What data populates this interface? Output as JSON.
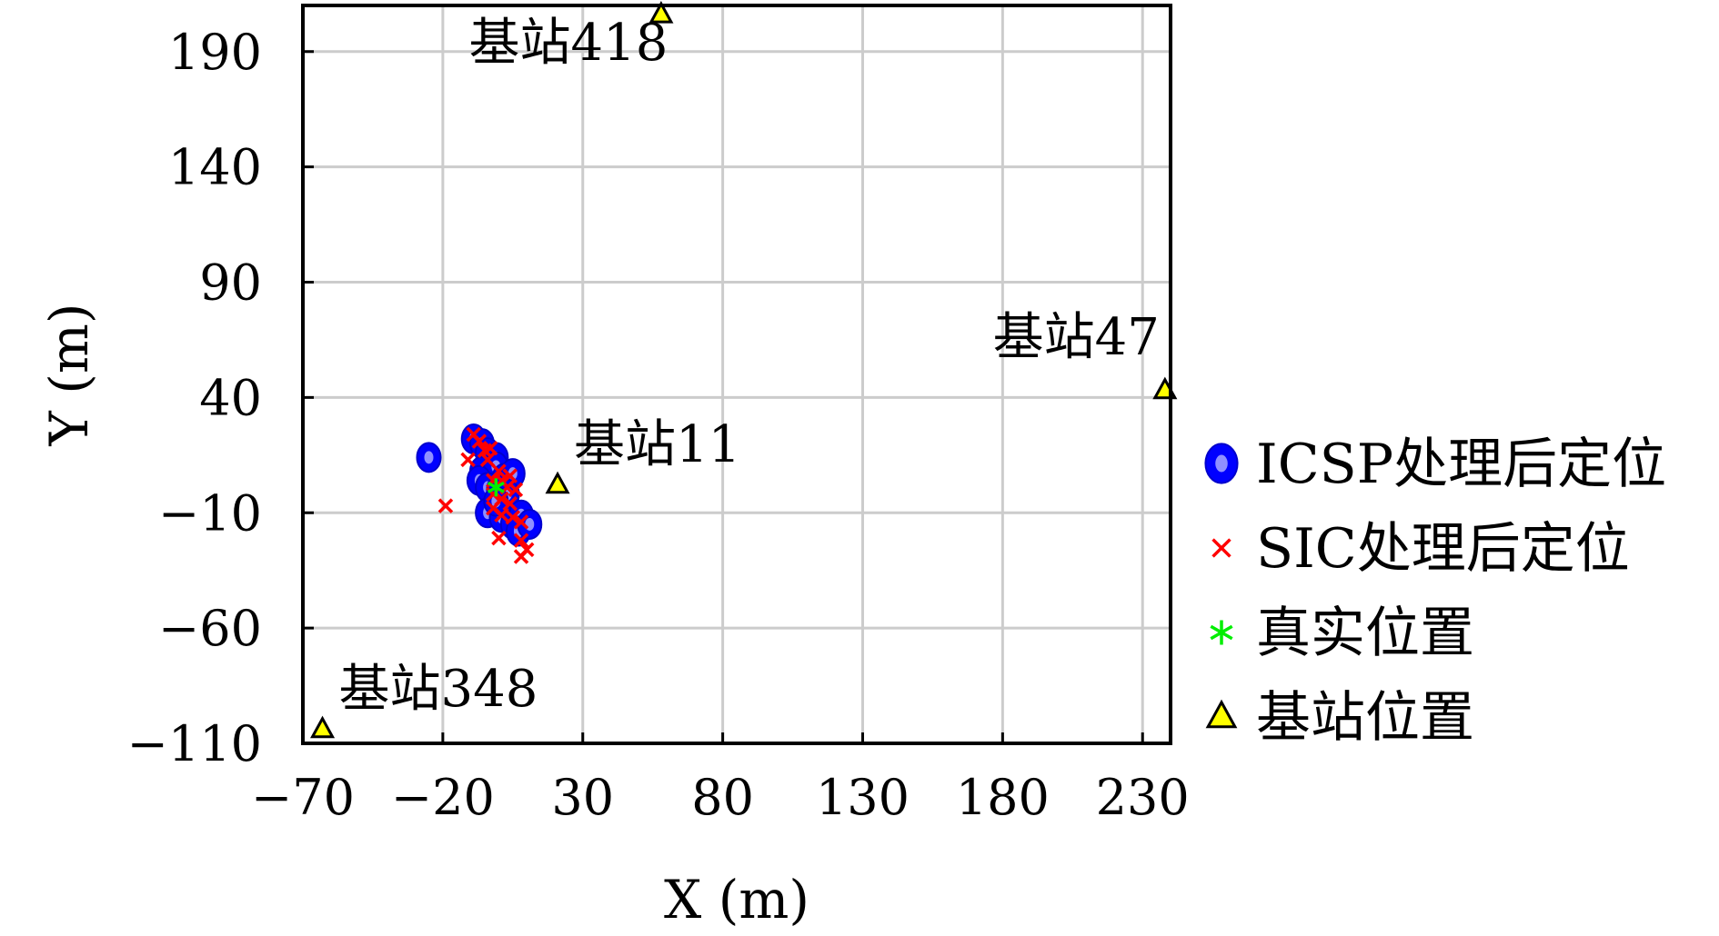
{
  "chart_data": {
    "type": "scatter",
    "xlabel": "X (m)",
    "ylabel": "Y (m)",
    "xlim": [
      -70,
      240
    ],
    "ylim": [
      -110,
      210
    ],
    "xticks": [
      -70,
      -20,
      30,
      80,
      130,
      180,
      230
    ],
    "yticks": [
      -110,
      -60,
      -10,
      40,
      90,
      140,
      190
    ],
    "xtick_labels": [
      "−70",
      "−20",
      "30",
      "80",
      "130",
      "180",
      "230"
    ],
    "ytick_labels": [
      "−110",
      "−60",
      "−10",
      "40",
      "90",
      "140",
      "190"
    ],
    "grid": true,
    "legend_position": "right",
    "series": [
      {
        "name": "ICSP处理后定位",
        "marker": "ellipse",
        "color": "#0000ff",
        "points": [
          [
            -25,
            14
          ],
          [
            -9,
            22
          ],
          [
            -6,
            20
          ],
          [
            -4,
            16
          ],
          [
            -1,
            14
          ],
          [
            -6,
            8
          ],
          [
            -1,
            10
          ],
          [
            2,
            5
          ],
          [
            5,
            7
          ],
          [
            -7,
            4
          ],
          [
            -4,
            1
          ],
          [
            0,
            0
          ],
          [
            3,
            -2
          ],
          [
            -4,
            -10
          ],
          [
            1,
            -12
          ],
          [
            5,
            -15
          ],
          [
            8,
            -11
          ],
          [
            7,
            -18
          ],
          [
            11,
            -15
          ],
          [
            -1,
            -5
          ]
        ]
      },
      {
        "name": "SIC处理后定位",
        "marker": "x",
        "color": "#ff0000",
        "points": [
          [
            -9,
            24
          ],
          [
            -7,
            21
          ],
          [
            -5,
            17
          ],
          [
            -3,
            18
          ],
          [
            -11,
            13
          ],
          [
            -4,
            13
          ],
          [
            0,
            8
          ],
          [
            4,
            6
          ],
          [
            1,
            4
          ],
          [
            -2,
            4
          ],
          [
            3,
            1
          ],
          [
            6,
            0
          ],
          [
            -2,
            -2
          ],
          [
            1,
            -4
          ],
          [
            4,
            -6
          ],
          [
            -2,
            -8
          ],
          [
            1,
            -11
          ],
          [
            5,
            -12
          ],
          [
            8,
            -14
          ],
          [
            0,
            -21
          ],
          [
            8,
            -22
          ],
          [
            8,
            -29
          ],
          [
            10,
            -26
          ],
          [
            -19,
            -7
          ]
        ]
      },
      {
        "name": "真实位置",
        "marker": "asterisk",
        "color": "#00ee00",
        "points": [
          [
            -1,
            1
          ]
        ]
      },
      {
        "name": "基站位置",
        "marker": "triangle",
        "color": "#ffff00",
        "points": [
          [
            -63,
            -104
          ],
          [
            21,
            2
          ],
          [
            58,
            206
          ],
          [
            238,
            43
          ]
        ]
      }
    ],
    "annotations": [
      {
        "text": "基站348",
        "x": -63,
        "y": -104
      },
      {
        "text": "基站11",
        "x": 21,
        "y": 2
      },
      {
        "text": "基站418",
        "x": 58,
        "y": 206
      },
      {
        "text": "基站47",
        "x": 238,
        "y": 43
      }
    ]
  }
}
